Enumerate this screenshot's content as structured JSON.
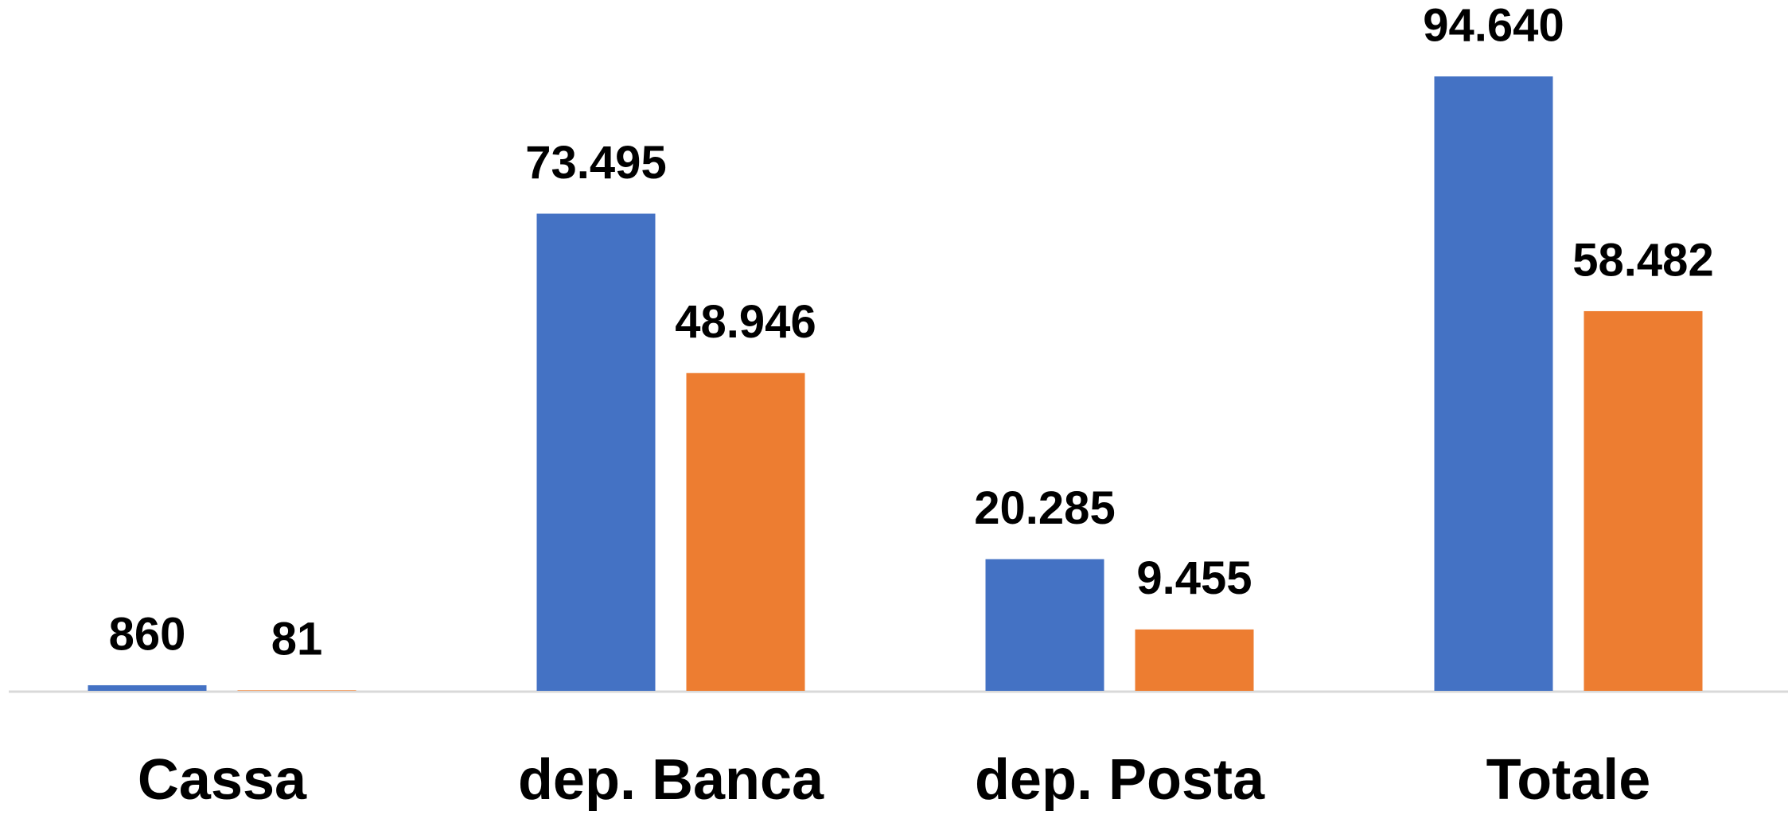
{
  "chart_data": {
    "type": "bar",
    "categories": [
      "Cassa",
      "dep. Banca",
      "dep. Posta",
      "Totale"
    ],
    "series": [
      {
        "color": "#4472c4",
        "values": [
          860,
          73495,
          20285,
          94640
        ],
        "value_labels": [
          "860",
          "73.495",
          "20.285",
          "94.640"
        ]
      },
      {
        "color": "#ed7d31",
        "values": [
          81,
          48946,
          9455,
          58482
        ],
        "value_labels": [
          "81",
          "48.946",
          "9.455",
          "58.482"
        ]
      }
    ]
  }
}
